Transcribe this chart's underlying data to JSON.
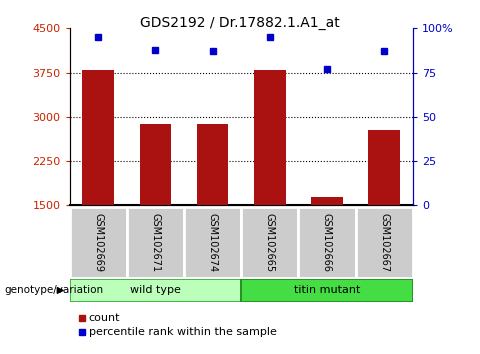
{
  "title": "GDS2192 / Dr.17882.1.A1_at",
  "samples": [
    "GSM102669",
    "GSM102671",
    "GSM102674",
    "GSM102665",
    "GSM102666",
    "GSM102667"
  ],
  "counts": [
    3800,
    2870,
    2870,
    3800,
    1640,
    2780
  ],
  "percentile_ranks": [
    95,
    88,
    87,
    95,
    77,
    87
  ],
  "ylim_left": [
    1500,
    4500
  ],
  "ylim_right": [
    0,
    100
  ],
  "yticks_left": [
    1500,
    2250,
    3000,
    3750,
    4500
  ],
  "yticks_right": [
    0,
    25,
    50,
    75,
    100
  ],
  "ytick_labels_left": [
    "1500",
    "2250",
    "3000",
    "3750",
    "4500"
  ],
  "ytick_labels_right": [
    "0",
    "25",
    "50",
    "75",
    "100%"
  ],
  "bar_color": "#aa1111",
  "dot_color": "#0000cc",
  "grid_color": "black",
  "groups": [
    {
      "label": "wild type",
      "samples": [
        0,
        1,
        2
      ],
      "color": "#bbffbb",
      "edge_color": "#33aa33"
    },
    {
      "label": "titin mutant",
      "samples": [
        3,
        4,
        5
      ],
      "color": "#44dd44",
      "edge_color": "#228822"
    }
  ],
  "genotype_label": "genotype/variation",
  "legend_count_label": "count",
  "legend_percentile_label": "percentile rank within the sample",
  "bar_width": 0.55,
  "tick_label_fontsize": 8,
  "title_fontsize": 10,
  "label_fontsize": 8,
  "sample_label_fontsize": 7,
  "left_tick_color": "#cc2200",
  "right_tick_color": "#0000cc",
  "label_box_color": "#cccccc",
  "label_box_edge": "#888888"
}
